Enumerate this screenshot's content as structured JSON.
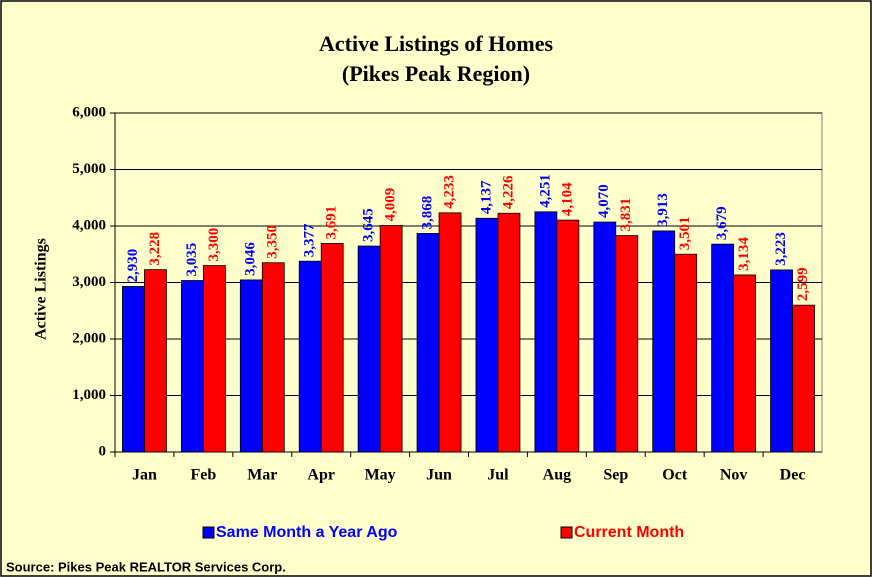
{
  "chart_data": {
    "type": "bar",
    "title": "Active Listings of Homes",
    "subtitle": "(Pikes Peak Region)",
    "y_label": "Active Listings",
    "source": "Source: Pikes Peak REALTOR  Services Corp.",
    "categories": [
      "Jan",
      "Feb",
      "Mar",
      "Apr",
      "May",
      "Jun",
      "Jul",
      "Aug",
      "Sep",
      "Oct",
      "Nov",
      "Dec"
    ],
    "series": [
      {
        "name": "Same Month a Year Ago",
        "color": "#0000ff",
        "values": [
          2930,
          3035,
          3046,
          3377,
          3645,
          3868,
          4137,
          4251,
          4070,
          3913,
          3679,
          3223
        ],
        "value_labels": [
          "2,930",
          "3,035",
          "3,046",
          "3,377",
          "3,645",
          "3,868",
          "4,137",
          "4,251",
          "4,070",
          "3,913",
          "3,679",
          "3,223"
        ]
      },
      {
        "name": "Current Month",
        "color": "#ff0000",
        "values": [
          3228,
          3300,
          3350,
          3691,
          4009,
          4233,
          4226,
          4104,
          3831,
          3501,
          3134,
          2599
        ],
        "value_labels": [
          "3,228",
          "3,300",
          "3,350",
          "3,691",
          "4,009",
          "4,233",
          "4,226",
          "4,104",
          "3,831",
          "3,501",
          "3,134",
          "2,599"
        ]
      }
    ],
    "ylim": [
      0,
      6000
    ],
    "yticks": [
      0,
      {
        "value": 1000,
        "label": "1,000"
      },
      {
        "value": 2000,
        "label": "2,000"
      },
      {
        "value": 3000,
        "label": "3,000"
      },
      {
        "value": 4000,
        "label": "4,000"
      },
      {
        "value": 5000,
        "label": "5,000"
      },
      {
        "value": 6000,
        "label": "6,000"
      }
    ],
    "grid": true,
    "legend": "bottom"
  }
}
